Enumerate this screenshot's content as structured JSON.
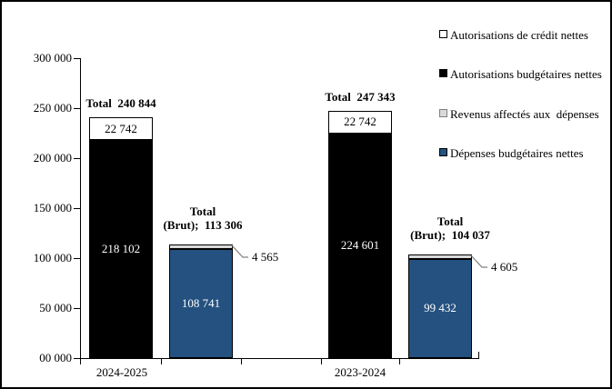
{
  "canvas": {
    "background": "#FFFFFF",
    "border_color": "#000000"
  },
  "colors": {
    "black": "#000000",
    "white": "#FFFFFF",
    "blue": "#24517F",
    "gray": "#D9D9D9",
    "leader_line": "#7F7F7F",
    "swatch_gray_border": "#7F7F7F"
  },
  "legend": {
    "items": [
      {
        "label": "Autorisations de crédit nettes",
        "color_key": "white"
      },
      {
        "label": "Autorisations budgétaires nettes",
        "color_key": "black"
      },
      {
        "label": "Revenus affectés aux  dépenses",
        "color_key": "gray"
      },
      {
        "label": "Dépenses budgétaires nettes",
        "color_key": "blue"
      }
    ]
  },
  "chart_data": {
    "type": "bar",
    "stacked": true,
    "grid": false,
    "legend_position": "top-right",
    "ylim": [
      0,
      300000
    ],
    "xlabel": "",
    "ylabel": "",
    "y_ticks": [
      {
        "value": 0,
        "label": "00 000"
      },
      {
        "value": 50000,
        "label": "50 000"
      },
      {
        "value": 100000,
        "label": "100 000"
      },
      {
        "value": 150000,
        "label": "150 000"
      },
      {
        "value": 200000,
        "label": "200 000"
      },
      {
        "value": 250000,
        "label": "250 000"
      },
      {
        "value": 300000,
        "label": "300 000"
      }
    ],
    "categories": [
      "2024-2025",
      "2023-2024"
    ],
    "series": [
      {
        "name": "Autorisations budgétaires nettes",
        "color_key": "black",
        "values": [
          218102,
          224601
        ]
      },
      {
        "name": "Autorisations de crédit nettes",
        "color_key": "white",
        "values": [
          22742,
          22742
        ]
      },
      {
        "name": "Dépenses budgétaires nettes",
        "color_key": "blue",
        "values": [
          108741,
          99432
        ]
      },
      {
        "name": "Revenus affectés aux dépenses",
        "color_key": "gray",
        "values": [
          4565,
          4605
        ]
      }
    ],
    "totals": {
      "autorisations": [
        240844,
        247343
      ],
      "brut": [
        113306,
        104037
      ]
    },
    "groups": [
      {
        "category": "2024-2025",
        "bars": [
          {
            "id": "autorisations-2024-2025",
            "total_label": "Total  240 844",
            "segments": [
              {
                "series": "Autorisations budgétaires nettes",
                "color_key": "black",
                "value": 218102,
                "label": "218 102",
                "label_color": "#FFFFFF"
              },
              {
                "series": "Autorisations de crédit nettes",
                "color_key": "white",
                "value": 22742,
                "label": "22 742",
                "label_color": "#000000"
              }
            ]
          },
          {
            "id": "depenses-2024-2025",
            "total_label_lines": [
              "Total",
              "(Brut);  113 306"
            ],
            "segments": [
              {
                "series": "Dépenses budgétaires nettes",
                "color_key": "blue",
                "value": 108741,
                "label": "108 741",
                "label_color": "#FFFFFF"
              },
              {
                "series": "Revenus affectés aux dépenses",
                "color_key": "gray",
                "value": 4565,
                "label": "",
                "callout": "4 565"
              }
            ]
          }
        ]
      },
      {
        "category": "2023-2024",
        "bars": [
          {
            "id": "autorisations-2023-2024",
            "total_label": "Total  247 343",
            "segments": [
              {
                "series": "Autorisations budgétaires nettes",
                "color_key": "black",
                "value": 224601,
                "label": "224 601",
                "label_color": "#FFFFFF"
              },
              {
                "series": "Autorisations de crédit nettes",
                "color_key": "white",
                "value": 22742,
                "label": "22 742",
                "label_color": "#000000"
              }
            ]
          },
          {
            "id": "depenses-2023-2024",
            "total_label_lines": [
              "Total",
              "(Brut);  104 037"
            ],
            "segments": [
              {
                "series": "Dépenses budgétaires nettes",
                "color_key": "blue",
                "value": 99432,
                "label": "99 432",
                "label_color": "#FFFFFF"
              },
              {
                "series": "Revenus affectés aux dépenses",
                "color_key": "gray",
                "value": 4605,
                "label": "",
                "callout": "4 605"
              }
            ]
          }
        ]
      }
    ]
  }
}
